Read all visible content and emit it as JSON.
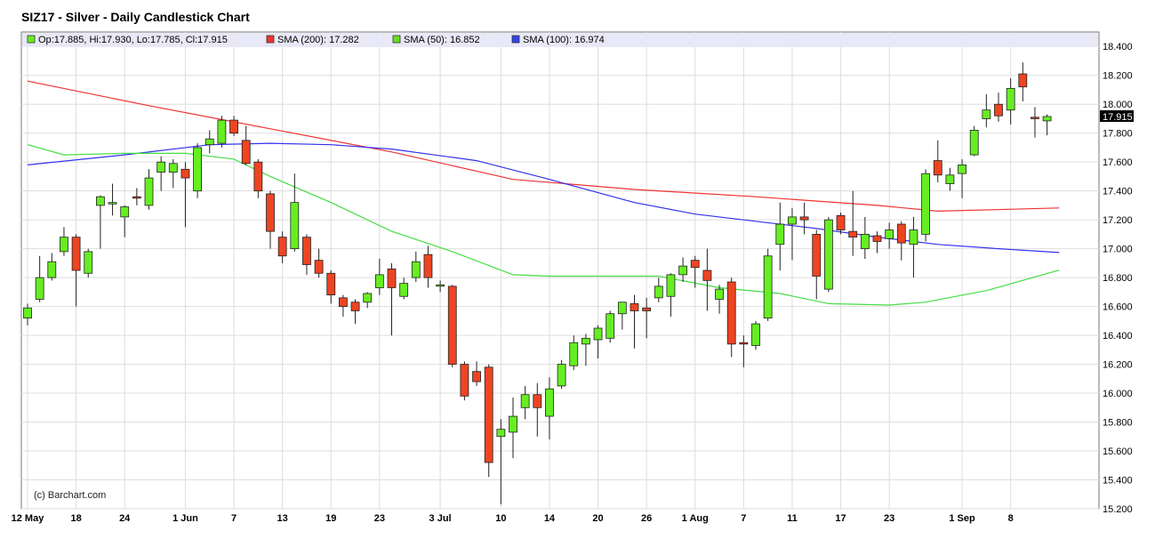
{
  "legend": {
    "ohlc_text": "Op:17.885, Hi:17.930, Lo:17.785, Cl:17.915",
    "sma200_text": "SMA (200): 17.282",
    "sma50_text": "SMA (50): 16.852",
    "sma100_text": "SMA (100): 16.974"
  },
  "credit": "(c) Barchart.com",
  "chart_data": {
    "type": "candlestick",
    "title": "SIZ17 - Silver - Daily Candlestick Chart",
    "ylim": [
      15.2,
      18.5
    ],
    "y_ticks": [
      "15.200",
      "15.400",
      "15.600",
      "15.800",
      "16.000",
      "16.200",
      "16.400",
      "16.600",
      "16.800",
      "17.000",
      "17.200",
      "17.400",
      "17.600",
      "17.800",
      "18.000",
      "18.200",
      "18.400"
    ],
    "last_price_label": "17.915",
    "last_price": 17.915,
    "x_labels": [
      {
        "index": 0,
        "label": "12 May"
      },
      {
        "index": 4,
        "label": "18"
      },
      {
        "index": 8,
        "label": "24"
      },
      {
        "index": 13,
        "label": "1 Jun"
      },
      {
        "index": 17,
        "label": "7"
      },
      {
        "index": 21,
        "label": "13"
      },
      {
        "index": 25,
        "label": "19"
      },
      {
        "index": 29,
        "label": "23"
      },
      {
        "index": 34,
        "label": "3 Jul"
      },
      {
        "index": 39,
        "label": "10"
      },
      {
        "index": 43,
        "label": "14"
      },
      {
        "index": 47,
        "label": "20"
      },
      {
        "index": 51,
        "label": "26"
      },
      {
        "index": 55,
        "label": "1 Aug"
      },
      {
        "index": 59,
        "label": "7"
      },
      {
        "index": 63,
        "label": "11"
      },
      {
        "index": 67,
        "label": "17"
      },
      {
        "index": 71,
        "label": "23"
      },
      {
        "index": 77,
        "label": "1 Sep"
      },
      {
        "index": 81,
        "label": "8"
      }
    ],
    "up_color": "#66ee22",
    "down_color": "#ee4422",
    "candles": [
      {
        "o": 16.52,
        "h": 16.62,
        "l": 16.47,
        "c": 16.59
      },
      {
        "o": 16.65,
        "h": 16.95,
        "l": 16.63,
        "c": 16.8
      },
      {
        "o": 16.8,
        "h": 16.97,
        "l": 16.78,
        "c": 16.91
      },
      {
        "o": 16.98,
        "h": 17.15,
        "l": 16.95,
        "c": 17.08
      },
      {
        "o": 17.08,
        "h": 17.1,
        "l": 16.6,
        "c": 16.85
      },
      {
        "o": 16.83,
        "h": 17.0,
        "l": 16.8,
        "c": 16.98
      },
      {
        "o": 17.3,
        "h": 17.37,
        "l": 17.0,
        "c": 17.36
      },
      {
        "o": 17.31,
        "h": 17.45,
        "l": 17.23,
        "c": 17.32
      },
      {
        "o": 17.22,
        "h": 17.3,
        "l": 17.08,
        "c": 17.29
      },
      {
        "o": 17.36,
        "h": 17.42,
        "l": 17.3,
        "c": 17.35
      },
      {
        "o": 17.3,
        "h": 17.55,
        "l": 17.27,
        "c": 17.49
      },
      {
        "o": 17.53,
        "h": 17.64,
        "l": 17.4,
        "c": 17.6
      },
      {
        "o": 17.53,
        "h": 17.62,
        "l": 17.42,
        "c": 17.59
      },
      {
        "o": 17.55,
        "h": 17.6,
        "l": 17.15,
        "c": 17.49
      },
      {
        "o": 17.4,
        "h": 17.73,
        "l": 17.35,
        "c": 17.7
      },
      {
        "o": 17.72,
        "h": 17.82,
        "l": 17.66,
        "c": 17.76
      },
      {
        "o": 17.73,
        "h": 17.92,
        "l": 17.7,
        "c": 17.89
      },
      {
        "o": 17.89,
        "h": 17.92,
        "l": 17.78,
        "c": 17.8
      },
      {
        "o": 17.75,
        "h": 17.85,
        "l": 17.58,
        "c": 17.59
      },
      {
        "o": 17.6,
        "h": 17.62,
        "l": 17.35,
        "c": 17.4
      },
      {
        "o": 17.38,
        "h": 17.4,
        "l": 17.0,
        "c": 17.12
      },
      {
        "o": 17.08,
        "h": 17.12,
        "l": 16.9,
        "c": 16.95
      },
      {
        "o": 17.0,
        "h": 17.52,
        "l": 16.98,
        "c": 17.32
      },
      {
        "o": 17.08,
        "h": 17.1,
        "l": 16.82,
        "c": 16.89
      },
      {
        "o": 16.92,
        "h": 17.0,
        "l": 16.8,
        "c": 16.83
      },
      {
        "o": 16.83,
        "h": 16.85,
        "l": 16.62,
        "c": 16.68
      },
      {
        "o": 16.66,
        "h": 16.68,
        "l": 16.53,
        "c": 16.6
      },
      {
        "o": 16.63,
        "h": 16.65,
        "l": 16.48,
        "c": 16.57
      },
      {
        "o": 16.63,
        "h": 16.7,
        "l": 16.59,
        "c": 16.69
      },
      {
        "o": 16.73,
        "h": 16.93,
        "l": 16.68,
        "c": 16.82
      },
      {
        "o": 16.86,
        "h": 16.9,
        "l": 16.4,
        "c": 16.73
      },
      {
        "o": 16.67,
        "h": 16.8,
        "l": 16.65,
        "c": 16.76
      },
      {
        "o": 16.8,
        "h": 16.98,
        "l": 16.77,
        "c": 16.91
      },
      {
        "o": 16.96,
        "h": 17.02,
        "l": 16.73,
        "c": 16.8
      },
      {
        "o": 16.75,
        "h": 16.78,
        "l": 16.7,
        "c": 16.75
      },
      {
        "o": 16.74,
        "h": 16.75,
        "l": 16.18,
        "c": 16.2
      },
      {
        "o": 16.2,
        "h": 16.22,
        "l": 15.95,
        "c": 15.98
      },
      {
        "o": 16.15,
        "h": 16.22,
        "l": 16.05,
        "c": 16.08
      },
      {
        "o": 16.18,
        "h": 16.2,
        "l": 15.42,
        "c": 15.52
      },
      {
        "o": 15.7,
        "h": 15.82,
        "l": 15.23,
        "c": 15.75
      },
      {
        "o": 15.73,
        "h": 15.97,
        "l": 15.55,
        "c": 15.84
      },
      {
        "o": 15.9,
        "h": 16.05,
        "l": 15.82,
        "c": 15.99
      },
      {
        "o": 15.99,
        "h": 16.07,
        "l": 15.7,
        "c": 15.9
      },
      {
        "o": 15.84,
        "h": 16.11,
        "l": 15.68,
        "c": 16.03
      },
      {
        "o": 16.05,
        "h": 16.23,
        "l": 16.03,
        "c": 16.2
      },
      {
        "o": 16.19,
        "h": 16.4,
        "l": 16.16,
        "c": 16.35
      },
      {
        "o": 16.34,
        "h": 16.41,
        "l": 16.19,
        "c": 16.38
      },
      {
        "o": 16.37,
        "h": 16.47,
        "l": 16.24,
        "c": 16.45
      },
      {
        "o": 16.38,
        "h": 16.57,
        "l": 16.35,
        "c": 16.55
      },
      {
        "o": 16.55,
        "h": 16.62,
        "l": 16.44,
        "c": 16.63
      },
      {
        "o": 16.62,
        "h": 16.68,
        "l": 16.31,
        "c": 16.57
      },
      {
        "o": 16.59,
        "h": 16.66,
        "l": 16.38,
        "c": 16.57
      },
      {
        "o": 16.66,
        "h": 16.8,
        "l": 16.63,
        "c": 16.74
      },
      {
        "o": 16.67,
        "h": 16.83,
        "l": 16.53,
        "c": 16.82
      },
      {
        "o": 16.82,
        "h": 16.94,
        "l": 16.77,
        "c": 16.88
      },
      {
        "o": 16.92,
        "h": 16.95,
        "l": 16.73,
        "c": 16.87
      },
      {
        "o": 16.85,
        "h": 17.0,
        "l": 16.57,
        "c": 16.78
      },
      {
        "o": 16.65,
        "h": 16.75,
        "l": 16.55,
        "c": 16.72
      },
      {
        "o": 16.77,
        "h": 16.8,
        "l": 16.25,
        "c": 16.34
      },
      {
        "o": 16.35,
        "h": 16.4,
        "l": 16.18,
        "c": 16.34
      },
      {
        "o": 16.33,
        "h": 16.5,
        "l": 16.3,
        "c": 16.48
      },
      {
        "o": 16.52,
        "h": 17.0,
        "l": 16.5,
        "c": 16.95
      },
      {
        "o": 17.03,
        "h": 17.32,
        "l": 16.85,
        "c": 17.17
      },
      {
        "o": 17.17,
        "h": 17.28,
        "l": 16.92,
        "c": 17.22
      },
      {
        "o": 17.22,
        "h": 17.32,
        "l": 17.1,
        "c": 17.2
      },
      {
        "o": 17.1,
        "h": 17.13,
        "l": 16.65,
        "c": 16.81
      },
      {
        "o": 16.72,
        "h": 17.22,
        "l": 16.7,
        "c": 17.2
      },
      {
        "o": 17.23,
        "h": 17.25,
        "l": 17.1,
        "c": 17.13
      },
      {
        "o": 17.12,
        "h": 17.4,
        "l": 16.95,
        "c": 17.08
      },
      {
        "o": 17.0,
        "h": 17.22,
        "l": 16.93,
        "c": 17.1
      },
      {
        "o": 17.09,
        "h": 17.12,
        "l": 16.97,
        "c": 17.05
      },
      {
        "o": 17.07,
        "h": 17.18,
        "l": 17.0,
        "c": 17.13
      },
      {
        "o": 17.17,
        "h": 17.19,
        "l": 16.92,
        "c": 17.04
      },
      {
        "o": 17.03,
        "h": 17.22,
        "l": 16.8,
        "c": 17.13
      },
      {
        "o": 17.1,
        "h": 17.55,
        "l": 17.05,
        "c": 17.52
      },
      {
        "o": 17.61,
        "h": 17.75,
        "l": 17.46,
        "c": 17.51
      },
      {
        "o": 17.45,
        "h": 17.56,
        "l": 17.4,
        "c": 17.51
      },
      {
        "o": 17.52,
        "h": 17.62,
        "l": 17.35,
        "c": 17.58
      },
      {
        "o": 17.65,
        "h": 17.85,
        "l": 17.64,
        "c": 17.82
      },
      {
        "o": 17.9,
        "h": 18.07,
        "l": 17.84,
        "c": 17.96
      },
      {
        "o": 18.0,
        "h": 18.08,
        "l": 17.88,
        "c": 17.92
      },
      {
        "o": 17.96,
        "h": 18.18,
        "l": 17.86,
        "c": 18.11
      },
      {
        "o": 18.21,
        "h": 18.29,
        "l": 18.02,
        "c": 18.12
      },
      {
        "o": 17.91,
        "h": 17.98,
        "l": 17.77,
        "c": 17.9
      },
      {
        "o": 17.885,
        "h": 17.93,
        "l": 17.785,
        "c": 17.915
      }
    ],
    "series": [
      {
        "name": "SMA (200)",
        "color": "#ee3333",
        "x": [
          0,
          10,
          20,
          30,
          40,
          50,
          60,
          70,
          75,
          85
        ],
        "values": [
          18.16,
          17.99,
          17.83,
          17.67,
          17.48,
          17.41,
          17.36,
          17.3,
          17.26,
          17.282
        ]
      },
      {
        "name": "SMA (100)",
        "color": "#3333ee",
        "x": [
          0,
          8,
          15,
          20,
          25,
          30,
          37,
          43,
          50,
          55,
          60,
          65,
          70,
          75,
          80,
          85
        ],
        "values": [
          17.58,
          17.65,
          17.72,
          17.73,
          17.72,
          17.69,
          17.61,
          17.48,
          17.32,
          17.24,
          17.19,
          17.14,
          17.08,
          17.03,
          17.0,
          16.974
        ]
      },
      {
        "name": "SMA (50)",
        "color": "#44dd44",
        "x": [
          0,
          3,
          8,
          13,
          17,
          20,
          25,
          30,
          35,
          40,
          43,
          47,
          52,
          57,
          62,
          66,
          71,
          74,
          79,
          85
        ],
        "values": [
          17.72,
          17.65,
          17.66,
          17.66,
          17.62,
          17.5,
          17.32,
          17.12,
          16.98,
          16.82,
          16.81,
          16.81,
          16.81,
          16.73,
          16.69,
          16.62,
          16.61,
          16.63,
          16.71,
          16.852
        ]
      }
    ]
  }
}
